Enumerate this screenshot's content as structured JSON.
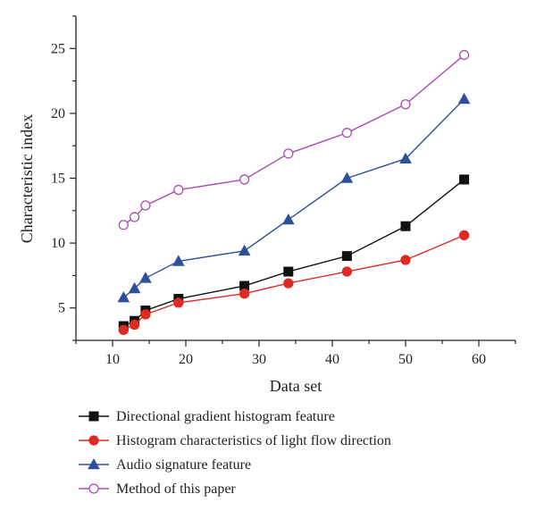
{
  "chart_data": {
    "type": "line",
    "title": "",
    "xlabel": "Data set",
    "ylabel": "Characteristic index",
    "xlim": [
      5,
      65
    ],
    "ylim": [
      2.5,
      27.5
    ],
    "xticks": [
      10,
      20,
      30,
      40,
      50,
      60
    ],
    "yticks": [
      5,
      10,
      15,
      20,
      25
    ],
    "grid": false,
    "legend_position": "bottom",
    "x": [
      11.5,
      13,
      14.5,
      19,
      28,
      34,
      42,
      50,
      58
    ],
    "series": [
      {
        "name": "Directional gradient histogram feature",
        "values": [
          3.6,
          4.0,
          4.8,
          5.7,
          6.7,
          7.8,
          9.0,
          11.3,
          14.9
        ],
        "color": "#111111",
        "marker": "square",
        "marker_fill": "#111111"
      },
      {
        "name": "Histogram characteristics of light flow direction",
        "values": [
          3.3,
          3.7,
          4.5,
          5.4,
          6.1,
          6.9,
          7.8,
          8.7,
          10.6
        ],
        "color": "#dd2a22",
        "marker": "circle",
        "marker_fill": "#dd2a22"
      },
      {
        "name": "Audio signature feature",
        "values": [
          5.8,
          6.5,
          7.3,
          8.6,
          9.4,
          11.8,
          15.0,
          16.5,
          21.1
        ],
        "color": "#2e4f9e",
        "marker": "triangle",
        "marker_fill": "#2e4f9e"
      },
      {
        "name": "Method of this paper",
        "values": [
          11.4,
          12.0,
          12.9,
          14.1,
          14.9,
          16.9,
          18.5,
          20.7,
          24.5
        ],
        "color": "#a64fb3",
        "marker": "circle",
        "marker_fill": "#ffffff"
      }
    ]
  }
}
